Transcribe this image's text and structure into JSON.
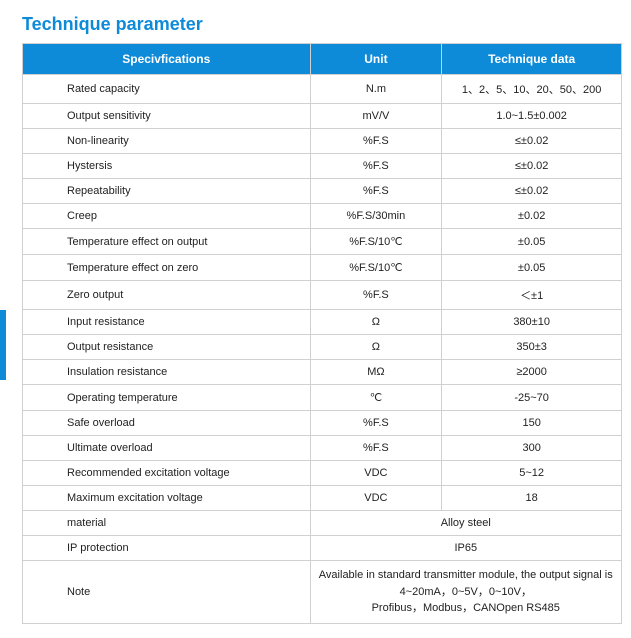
{
  "title": "Technique parameter",
  "headers": {
    "spec": "Specivfications",
    "unit": "Unit",
    "data": "Technique data"
  },
  "rows": [
    {
      "spec": "Rated capacity",
      "unit": "N.m",
      "data": "1、2、5、10、20、50、200"
    },
    {
      "spec": "Output sensitivity",
      "unit": "mV/V",
      "data": "1.0~1.5±0.002"
    },
    {
      "spec": "Non-linearity",
      "unit": "%F.S",
      "data": "≤±0.02"
    },
    {
      "spec": "Hystersis",
      "unit": "%F.S",
      "data": "≤±0.02"
    },
    {
      "spec": "Repeatability",
      "unit": "%F.S",
      "data": "≤±0.02"
    },
    {
      "spec": "Creep",
      "unit": "%F.S/30min",
      "data": "±0.02"
    },
    {
      "spec": "Temperature effect on output",
      "unit": "%F.S/10℃",
      "data": "±0.05"
    },
    {
      "spec": "Temperature effect on zero",
      "unit": "%F.S/10℃",
      "data": "±0.05"
    },
    {
      "spec": "Zero output",
      "unit": "%F.S",
      "data": "＜±1"
    },
    {
      "spec": "Input resistance",
      "unit": "Ω",
      "data": "380±10"
    },
    {
      "spec": "Output resistance",
      "unit": "Ω",
      "data": "350±3"
    },
    {
      "spec": "Insulation resistance",
      "unit": "MΩ",
      "data": "≥2000"
    },
    {
      "spec": "Operating temperature",
      "unit": "℃",
      "data": "-25~70"
    },
    {
      "spec": "Safe overload",
      "unit": "%F.S",
      "data": "150"
    },
    {
      "spec": "Ultimate overload",
      "unit": "%F.S",
      "data": "300"
    },
    {
      "spec": "Recommended excitation voltage",
      "unit": "VDC",
      "data": "5~12"
    },
    {
      "spec": "Maximum excitation voltage",
      "unit": "VDC",
      "data": "18"
    }
  ],
  "merged_rows": [
    {
      "spec": "material",
      "value": "Alloy steel"
    },
    {
      "spec": "IP protection",
      "value": "IP65"
    }
  ],
  "note": {
    "spec": "Note",
    "small": "Available in standard transmitter module, the output signal is ",
    "line1_strong": "4~20mA，0~5V，0~10V，",
    "line2": "Profibus，Modbus，CANOpen  RS485"
  },
  "colors": {
    "header_bg": "#0d8bd9",
    "header_text": "#ffffff",
    "border": "#d0d0d0",
    "title": "#0d8bd9",
    "text": "#222222",
    "background": "#ffffff"
  }
}
